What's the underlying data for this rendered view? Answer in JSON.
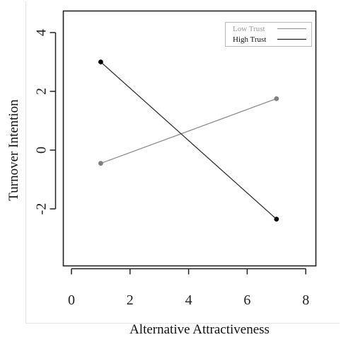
{
  "chart_data": {
    "type": "line",
    "title": "",
    "xlabel": "Alternative Attractiveness",
    "ylabel": "Turnover Intention",
    "xlim": [
      0,
      8
    ],
    "ylim": [
      -4,
      4
    ],
    "x_ticks": [
      0,
      2,
      4,
      6,
      8
    ],
    "y_ticks": [
      -2,
      0,
      2,
      4
    ],
    "x_tick_labels": [
      "0",
      "2",
      "4",
      "6",
      "8"
    ],
    "y_tick_labels": [
      "-2",
      "0",
      "2",
      "4"
    ],
    "grid": false,
    "legend_position": "top-right",
    "series": [
      {
        "name": "Low Trust",
        "color": "#8c8c8c",
        "marker_color": "#808080",
        "x": [
          1,
          7
        ],
        "values": [
          -0.45,
          1.75
        ]
      },
      {
        "name": "High Trust",
        "color": "#333333",
        "marker_color": "#000000",
        "x": [
          1,
          7
        ],
        "values": [
          3.0,
          -2.35
        ]
      }
    ]
  }
}
